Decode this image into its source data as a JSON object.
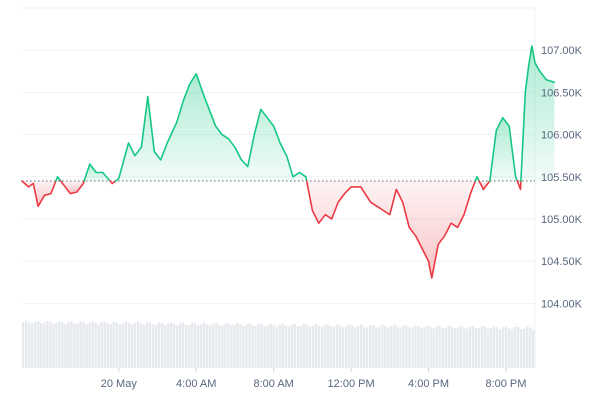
{
  "chart_data": {
    "type": "area",
    "baseline": 105450,
    "y_ticks": [
      {
        "value": 104000,
        "label": "104.00K"
      },
      {
        "value": 104500,
        "label": "104.50K"
      },
      {
        "value": 105000,
        "label": "105.00K"
      },
      {
        "value": 105500,
        "label": "105.50K"
      },
      {
        "value": 106000,
        "label": "106.00K"
      },
      {
        "value": 106500,
        "label": "106.50K"
      },
      {
        "value": 107000,
        "label": "107.00K"
      }
    ],
    "ylim": [
      103850,
      107500
    ],
    "xlim": [
      "2025-05-19T19:00",
      "2025-05-20T21:30"
    ],
    "x_ticks": [
      {
        "x": "2025-05-20T00:00",
        "label": "20 May"
      },
      {
        "x": "2025-05-20T04:00",
        "label": "4:00 AM"
      },
      {
        "x": "2025-05-20T08:00",
        "label": "8:00 AM"
      },
      {
        "x": "2025-05-20T12:00",
        "label": "12:00 PM"
      },
      {
        "x": "2025-05-20T16:00",
        "label": "4:00 PM"
      },
      {
        "x": "2025-05-20T20:00",
        "label": "8:00 PM"
      }
    ],
    "grid": true,
    "colors": {
      "up": "#16c784",
      "down": "#ea3943",
      "grid": "#eff2f5",
      "volume": "#e6e9ee",
      "baseline": "#58667e"
    },
    "series": [
      {
        "values": [
          [
            "2025-05-19T19:00",
            105450
          ],
          [
            "2025-05-19T19:20",
            105380
          ],
          [
            "2025-05-19T19:35",
            105420
          ],
          [
            "2025-05-19T19:50",
            105150
          ],
          [
            "2025-05-19T20:10",
            105280
          ],
          [
            "2025-05-19T20:30",
            105300
          ],
          [
            "2025-05-19T20:50",
            105500
          ],
          [
            "2025-05-19T21:10",
            105400
          ],
          [
            "2025-05-19T21:30",
            105300
          ],
          [
            "2025-05-19T21:50",
            105320
          ],
          [
            "2025-05-19T22:10",
            105420
          ],
          [
            "2025-05-19T22:30",
            105650
          ],
          [
            "2025-05-19T22:50",
            105550
          ],
          [
            "2025-05-19T23:10",
            105550
          ],
          [
            "2025-05-19T23:40",
            105420
          ],
          [
            "2025-05-20T00:00",
            105480
          ],
          [
            "2025-05-20T00:30",
            105900
          ],
          [
            "2025-05-20T00:50",
            105750
          ],
          [
            "2025-05-20T01:10",
            105850
          ],
          [
            "2025-05-20T01:30",
            106450
          ],
          [
            "2025-05-20T01:50",
            105800
          ],
          [
            "2025-05-20T02:10",
            105700
          ],
          [
            "2025-05-20T02:30",
            105900
          ],
          [
            "2025-05-20T03:00",
            106150
          ],
          [
            "2025-05-20T03:20",
            106400
          ],
          [
            "2025-05-20T03:40",
            106600
          ],
          [
            "2025-05-20T04:00",
            106720
          ],
          [
            "2025-05-20T04:20",
            106500
          ],
          [
            "2025-05-20T04:40",
            106300
          ],
          [
            "2025-05-20T05:00",
            106100
          ],
          [
            "2025-05-20T05:20",
            106000
          ],
          [
            "2025-05-20T05:40",
            105950
          ],
          [
            "2025-05-20T06:00",
            105850
          ],
          [
            "2025-05-20T06:20",
            105700
          ],
          [
            "2025-05-20T06:40",
            105620
          ],
          [
            "2025-05-20T07:00",
            106000
          ],
          [
            "2025-05-20T07:20",
            106300
          ],
          [
            "2025-05-20T07:40",
            106200
          ],
          [
            "2025-05-20T08:00",
            106100
          ],
          [
            "2025-05-20T08:20",
            105900
          ],
          [
            "2025-05-20T08:40",
            105750
          ],
          [
            "2025-05-20T09:00",
            105500
          ],
          [
            "2025-05-20T09:20",
            105550
          ],
          [
            "2025-05-20T09:40",
            105500
          ],
          [
            "2025-05-20T10:00",
            105100
          ],
          [
            "2025-05-20T10:20",
            104950
          ],
          [
            "2025-05-20T10:40",
            105050
          ],
          [
            "2025-05-20T11:00",
            105000
          ],
          [
            "2025-05-20T11:20",
            105200
          ],
          [
            "2025-05-20T11:40",
            105300
          ],
          [
            "2025-05-20T12:00",
            105380
          ],
          [
            "2025-05-20T12:30",
            105380
          ],
          [
            "2025-05-20T13:00",
            105200
          ],
          [
            "2025-05-20T13:20",
            105150
          ],
          [
            "2025-05-20T13:40",
            105100
          ],
          [
            "2025-05-20T14:00",
            105050
          ],
          [
            "2025-05-20T14:20",
            105350
          ],
          [
            "2025-05-20T14:40",
            105200
          ],
          [
            "2025-05-20T15:00",
            104900
          ],
          [
            "2025-05-20T15:20",
            104800
          ],
          [
            "2025-05-20T15:40",
            104650
          ],
          [
            "2025-05-20T16:00",
            104500
          ],
          [
            "2025-05-20T16:10",
            104300
          ],
          [
            "2025-05-20T16:30",
            104700
          ],
          [
            "2025-05-20T16:50",
            104800
          ],
          [
            "2025-05-20T17:10",
            104950
          ],
          [
            "2025-05-20T17:30",
            104900
          ],
          [
            "2025-05-20T17:50",
            105050
          ],
          [
            "2025-05-20T18:10",
            105300
          ],
          [
            "2025-05-20T18:30",
            105500
          ],
          [
            "2025-05-20T18:50",
            105350
          ],
          [
            "2025-05-20T19:10",
            105450
          ],
          [
            "2025-05-20T19:30",
            106050
          ],
          [
            "2025-05-20T19:50",
            106200
          ],
          [
            "2025-05-20T20:10",
            106100
          ],
          [
            "2025-05-20T20:30",
            105500
          ],
          [
            "2025-05-20T20:45",
            105350
          ],
          [
            "2025-05-20T21:00",
            106500
          ],
          [
            "2025-05-20T21:10",
            106800
          ],
          [
            "2025-05-20T21:20",
            107050
          ],
          [
            "2025-05-20T21:30",
            106850
          ],
          [
            "2025-05-20T21:45",
            106750
          ],
          [
            "2025-05-20T22:05",
            106650
          ],
          [
            "2025-05-20T22:30",
            106620
          ]
        ]
      }
    ]
  }
}
